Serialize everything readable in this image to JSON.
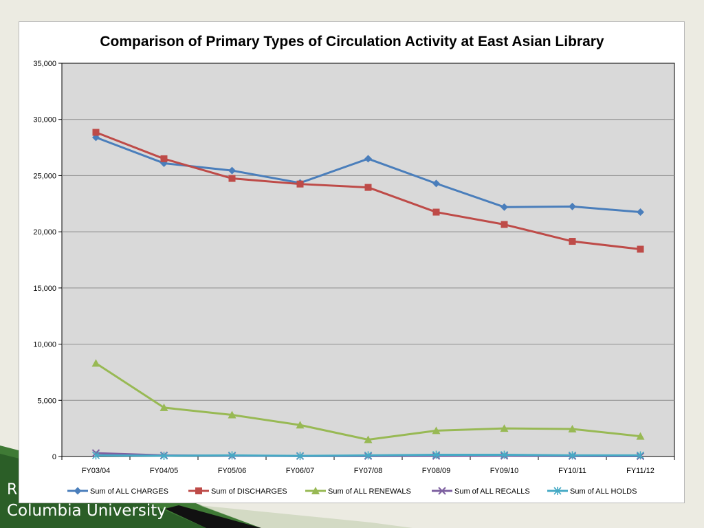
{
  "slide": {
    "footer_fragment": "R",
    "footer_text": "Columbia University",
    "colors": {
      "background": "#ecebe2",
      "green_dark": "#2e6a2b",
      "green_mid": "#4f8e3c"
    }
  },
  "chart_data": {
    "type": "line",
    "title": "Comparison of Primary Types of Circulation Activity at East Asian Library",
    "xlabel": "",
    "ylabel": "",
    "categories": [
      "FY03/04",
      "FY04/05",
      "FY05/06",
      "FY06/07",
      "FY07/08",
      "FY08/09",
      "FY09/10",
      "FY10/11",
      "FY11/12"
    ],
    "ylim": [
      0,
      35000
    ],
    "yticks": [
      0,
      5000,
      10000,
      15000,
      20000,
      25000,
      30000,
      35000
    ],
    "ytick_labels": [
      "0",
      "5,000",
      "10,000",
      "15,000",
      "20,000",
      "25,000",
      "30,000",
      "35,000"
    ],
    "grid": true,
    "plot_background": "#d9d9d9",
    "legend_position": "bottom",
    "series": [
      {
        "name": "Sum of ALL CHARGES",
        "color": "#4a7ebb",
        "marker": "diamond",
        "values": [
          28400,
          26100,
          25450,
          24350,
          26500,
          24300,
          22200,
          22250,
          21750
        ]
      },
      {
        "name": "Sum of DISCHARGES",
        "color": "#be4b48",
        "marker": "square",
        "values": [
          28850,
          26500,
          24750,
          24250,
          23950,
          21750,
          20650,
          19150,
          18450
        ]
      },
      {
        "name": "Sum of ALL RENEWALS",
        "color": "#98b954",
        "marker": "triangle",
        "values": [
          8300,
          4350,
          3700,
          2800,
          1500,
          2300,
          2500,
          2450,
          1800
        ]
      },
      {
        "name": "Sum of ALL RECALLS",
        "color": "#7d60a0",
        "marker": "x",
        "values": [
          300,
          100,
          60,
          40,
          40,
          50,
          60,
          40,
          30
        ]
      },
      {
        "name": "Sum of ALL HOLDS",
        "color": "#46aac5",
        "marker": "star",
        "values": [
          100,
          60,
          100,
          50,
          100,
          150,
          150,
          100,
          100
        ]
      }
    ]
  }
}
